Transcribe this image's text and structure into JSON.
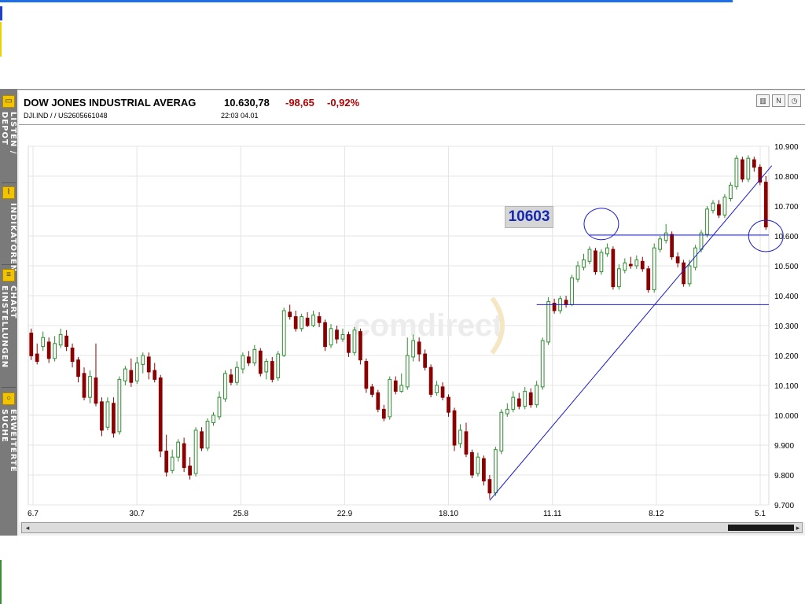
{
  "header": {
    "name": "DOW JONES INDUSTRIAL AVERAG",
    "price": "10.630,78",
    "change": "-98,65",
    "change_pct": "-0,92%",
    "sub": "DJI.IND  /    /  US2605661048",
    "time": "22:03   04.01",
    "buttons": [
      {
        "name": "chart-type-icon",
        "glyph": "▥"
      },
      {
        "name": "news-icon",
        "glyph": "N"
      },
      {
        "name": "clock-icon",
        "glyph": "◷"
      }
    ]
  },
  "sidebar": {
    "sections": [
      {
        "label": "LISTEN / DEPOT",
        "icon": "folder-icon",
        "glyph": "▭"
      },
      {
        "label": "INDIKATOREN",
        "icon": "indicator-icon",
        "glyph": "⌇"
      },
      {
        "label": "CHART EINSTELLUNGEN",
        "icon": "settings-list-icon",
        "glyph": "≡"
      },
      {
        "label": "ERWEITERTE SUCHE",
        "icon": "search-icon",
        "glyph": "○"
      }
    ]
  },
  "watermark": "comdirect",
  "annotation": "10603",
  "colors": {
    "up": "#2e8b2e",
    "down": "#8b0000",
    "trendline": "#1a1ad0",
    "change": "#b30000"
  },
  "chart_data": {
    "type": "candlestick",
    "title": "DOW JONES INDUSTRIAL AVERAG",
    "ylim": [
      9700,
      10900
    ],
    "yticks": [
      "10.900",
      "10.800",
      "10.700",
      "10.600",
      "10.500",
      "10.400",
      "10.300",
      "10.200",
      "10.100",
      "10.000",
      "9.900",
      "9.800",
      "9.700"
    ],
    "xticks": [
      "6.7",
      "30.7",
      "25.8",
      "22.9",
      "18.10",
      "11.11",
      "8.12",
      "5.1"
    ],
    "grid": true,
    "n_candles": 126,
    "candles": [
      [
        10275,
        10199,
        10290,
        10185
      ],
      [
        10205,
        10180,
        10240,
        10170
      ],
      [
        10230,
        10260,
        10280,
        10215
      ],
      [
        10245,
        10190,
        10260,
        10175
      ],
      [
        10190,
        10240,
        10265,
        10180
      ],
      [
        10235,
        10270,
        10290,
        10225
      ],
      [
        10265,
        10230,
        10285,
        10215
      ],
      [
        10225,
        10180,
        10240,
        10160
      ],
      [
        10185,
        10130,
        10195,
        10110
      ],
      [
        10140,
        10060,
        10160,
        10050
      ],
      [
        10060,
        10130,
        10150,
        10040
      ],
      [
        10125,
        10040,
        10240,
        10030
      ],
      [
        10045,
        9950,
        10060,
        9930
      ],
      [
        9960,
        10045,
        10060,
        9950
      ],
      [
        10040,
        9940,
        10060,
        9925
      ],
      [
        9945,
        10120,
        10130,
        9935
      ],
      [
        10115,
        10155,
        10165,
        10100
      ],
      [
        10150,
        10110,
        10190,
        10095
      ],
      [
        10115,
        10175,
        10195,
        10105
      ],
      [
        10170,
        10200,
        10210,
        10140
      ],
      [
        10195,
        10145,
        10210,
        10120
      ],
      [
        10150,
        10120,
        10175,
        10110
      ],
      [
        10125,
        9880,
        10135,
        9860
      ],
      [
        9880,
        9810,
        9935,
        9795
      ],
      [
        9815,
        9860,
        9885,
        9805
      ],
      [
        9860,
        9910,
        9920,
        9845
      ],
      [
        9905,
        9825,
        9925,
        9810
      ],
      [
        9830,
        9800,
        9860,
        9785
      ],
      [
        9805,
        9950,
        9960,
        9795
      ],
      [
        9945,
        9890,
        9960,
        9880
      ],
      [
        9890,
        9980,
        9990,
        9880
      ],
      [
        9975,
        10000,
        10010,
        9965
      ],
      [
        9995,
        10060,
        10080,
        9985
      ],
      [
        10055,
        10140,
        10150,
        10045
      ],
      [
        10135,
        10110,
        10155,
        10100
      ],
      [
        10110,
        10160,
        10180,
        10100
      ],
      [
        10155,
        10200,
        10210,
        10140
      ],
      [
        10195,
        10175,
        10215,
        10165
      ],
      [
        10175,
        10220,
        10235,
        10165
      ],
      [
        10215,
        10140,
        10225,
        10130
      ],
      [
        10145,
        10180,
        10190,
        10120
      ],
      [
        10180,
        10120,
        10195,
        10110
      ],
      [
        10125,
        10205,
        10215,
        10115
      ],
      [
        10200,
        10350,
        10360,
        10195
      ],
      [
        10345,
        10330,
        10370,
        10320
      ],
      [
        10330,
        10290,
        10350,
        10280
      ],
      [
        10290,
        10330,
        10340,
        10280
      ],
      [
        10325,
        10300,
        10345,
        10295
      ],
      [
        10300,
        10335,
        10350,
        10295
      ],
      [
        10330,
        10310,
        10345,
        10295
      ],
      [
        10310,
        10230,
        10320,
        10215
      ],
      [
        10235,
        10290,
        10305,
        10225
      ],
      [
        10285,
        10255,
        10300,
        10240
      ],
      [
        10255,
        10270,
        10290,
        10245
      ],
      [
        10270,
        10210,
        10280,
        10195
      ],
      [
        10210,
        10285,
        10295,
        10200
      ],
      [
        10280,
        10185,
        10290,
        10170
      ],
      [
        10180,
        10090,
        10190,
        10075
      ],
      [
        10095,
        10070,
        10105,
        10060
      ],
      [
        10075,
        10020,
        10085,
        10010
      ],
      [
        10020,
        9990,
        10035,
        9980
      ],
      [
        9995,
        10120,
        10130,
        9985
      ],
      [
        10115,
        10080,
        10130,
        10070
      ],
      [
        10080,
        10100,
        10140,
        10075
      ],
      [
        10095,
        10200,
        10260,
        10085
      ],
      [
        10195,
        10250,
        10270,
        10180
      ],
      [
        10245,
        10205,
        10260,
        10180
      ],
      [
        10205,
        10160,
        10220,
        10150
      ],
      [
        10160,
        10070,
        10170,
        10060
      ],
      [
        10075,
        10100,
        10115,
        10065
      ],
      [
        10095,
        10060,
        10110,
        10050
      ],
      [
        10060,
        10010,
        10070,
        9995
      ],
      [
        10015,
        9900,
        10025,
        9880
      ],
      [
        9905,
        9950,
        9970,
        9890
      ],
      [
        9945,
        9870,
        9975,
        9860
      ],
      [
        9875,
        9800,
        9885,
        9790
      ],
      [
        9805,
        9860,
        9875,
        9795
      ],
      [
        9855,
        9780,
        9865,
        9765
      ],
      [
        9785,
        9740,
        9800,
        9720
      ],
      [
        9740,
        9885,
        9895,
        9730
      ],
      [
        9880,
        10010,
        10020,
        9870
      ],
      [
        10005,
        10020,
        10040,
        9995
      ],
      [
        10020,
        10060,
        10080,
        10010
      ],
      [
        10055,
        10030,
        10075,
        10020
      ],
      [
        10030,
        10080,
        10095,
        10020
      ],
      [
        10075,
        10035,
        10090,
        10025
      ],
      [
        10035,
        10100,
        10115,
        10025
      ],
      [
        10095,
        10250,
        10260,
        10085
      ],
      [
        10245,
        10380,
        10395,
        10235
      ],
      [
        10375,
        10350,
        10390,
        10340
      ],
      [
        10350,
        10390,
        10400,
        10340
      ],
      [
        10385,
        10370,
        10400,
        10360
      ],
      [
        10370,
        10460,
        10470,
        10365
      ],
      [
        10455,
        10500,
        10515,
        10445
      ],
      [
        10495,
        10520,
        10540,
        10485
      ],
      [
        10515,
        10555,
        10565,
        10505
      ],
      [
        10550,
        10480,
        10560,
        10470
      ],
      [
        10480,
        10545,
        10555,
        10470
      ],
      [
        10540,
        10560,
        10575,
        10530
      ],
      [
        10555,
        10430,
        10565,
        10420
      ],
      [
        10430,
        10490,
        10505,
        10420
      ],
      [
        10485,
        10510,
        10525,
        10475
      ],
      [
        10505,
        10500,
        10530,
        10490
      ],
      [
        10500,
        10520,
        10535,
        10490
      ],
      [
        10515,
        10490,
        10530,
        10480
      ],
      [
        10490,
        10420,
        10500,
        10410
      ],
      [
        10420,
        10560,
        10575,
        10410
      ],
      [
        10555,
        10590,
        10600,
        10545
      ],
      [
        10585,
        10610,
        10640,
        10575
      ],
      [
        10605,
        10530,
        10615,
        10520
      ],
      [
        10530,
        10510,
        10545,
        10495
      ],
      [
        10510,
        10440,
        10520,
        10430
      ],
      [
        10440,
        10500,
        10520,
        10430
      ],
      [
        10495,
        10560,
        10570,
        10485
      ],
      [
        10555,
        10610,
        10620,
        10545
      ],
      [
        10605,
        10690,
        10700,
        10595
      ],
      [
        10685,
        10710,
        10720,
        10675
      ],
      [
        10705,
        10670,
        10720,
        10660
      ],
      [
        10670,
        10730,
        10740,
        10660
      ],
      [
        10725,
        10770,
        10780,
        10715
      ],
      [
        10765,
        10860,
        10870,
        10755
      ],
      [
        10855,
        10790,
        10865,
        10780
      ],
      [
        10790,
        10860,
        10870,
        10780
      ],
      [
        10855,
        10830,
        10865,
        10815
      ],
      [
        10830,
        10780,
        10840,
        10770
      ],
      [
        10780,
        10630,
        10800,
        10620
      ]
    ],
    "annotations": {
      "horizontal_lines": [
        10370,
        10603
      ],
      "trendline": {
        "from": [
          78,
          9715
        ],
        "to": [
          126,
          10835
        ]
      },
      "circles": [
        [
          97,
          10640
        ],
        [
          125,
          10600
        ]
      ]
    }
  }
}
